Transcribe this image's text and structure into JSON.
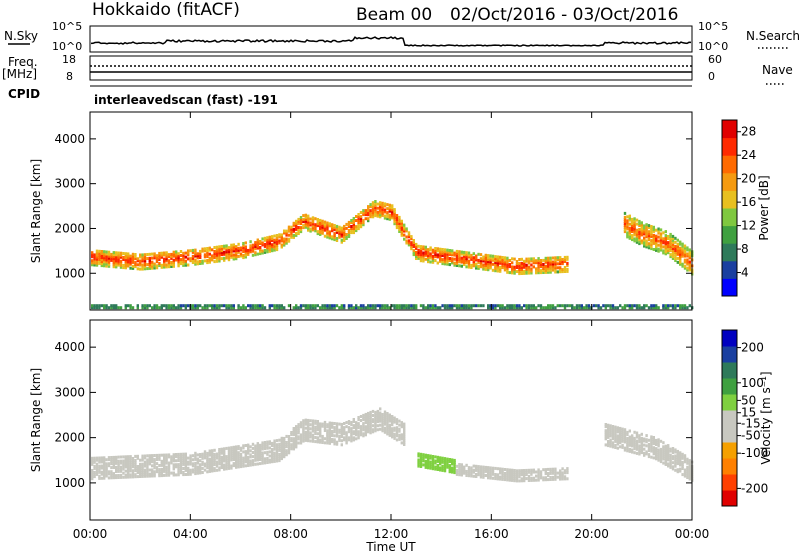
{
  "header": {
    "station": "Hokkaido (fitACF)",
    "beam": "Beam 00",
    "date_range": "02/Oct/2016 - 03/Oct/2016"
  },
  "top_panels": {
    "nsky_label": "N.Sky",
    "nsearch_label": "N.Search",
    "nsky_ticks_left": [
      "10^5",
      "10^0"
    ],
    "nsky_ticks_right": [
      "10^5",
      "10^0"
    ],
    "freq_label": "Freq.",
    "freq_unit": "[MHz]",
    "freq_ticks": [
      "18",
      "8"
    ],
    "nave_label": "Nave",
    "nave_ticks": [
      "60",
      "0"
    ],
    "cpid_label": "CPID",
    "cpid_text": "interleavedscan (fast) -191"
  },
  "colors": {
    "power_scale": [
      "#0000ff",
      "#1a3fa0",
      "#2e7a5a",
      "#3fa040",
      "#7fc840",
      "#e8c020",
      "#f59a10",
      "#ff6a00",
      "#ff2a00",
      "#e00000"
    ],
    "velocity_scale": [
      "#e00000",
      "#ff4000",
      "#ff8000",
      "#f5a000",
      "#c8c8c0",
      "#c8c8c0",
      "#7fd040",
      "#3fa040",
      "#2e7a5a",
      "#1a3fa0",
      "#0000c0"
    ]
  },
  "chart_data": [
    {
      "type": "heatmap",
      "panel": "power",
      "ylabel": "Slant Range [km]",
      "xlabel": "Time UT",
      "x_ticks": [
        "00:00",
        "04:00",
        "08:00",
        "12:00",
        "16:00",
        "20:00",
        "00:00"
      ],
      "y_ticks": [
        1000,
        2000,
        3000,
        4000
      ],
      "ylim": [
        180,
        4600
      ],
      "xlim_hours": [
        0,
        24
      ],
      "colorbar": {
        "label": "Power [dB]",
        "ticks": [
          4,
          8,
          12,
          16,
          20,
          24,
          28
        ],
        "range": [
          0,
          30
        ]
      },
      "features": [
        {
          "name": "main echo band",
          "points": [
            [
              0,
              1400
            ],
            [
              2,
              1300
            ],
            [
              4,
              1400
            ],
            [
              6,
              1550
            ],
            [
              7.5,
              1750
            ],
            [
              8.5,
              2200
            ],
            [
              10,
              1900
            ],
            [
              11.3,
              2500
            ],
            [
              12,
              2400
            ],
            [
              13,
              1500
            ],
            [
              15,
              1350
            ],
            [
              17,
              1200
            ],
            [
              19,
              1250
            ]
          ],
          "width_km": 350,
          "peak_db": 26
        },
        {
          "name": "late echo band",
          "points": [
            [
              21.2,
              2150
            ],
            [
              22,
              1900
            ],
            [
              23,
              1700
            ],
            [
              24,
              1250
            ]
          ],
          "width_km": 500,
          "peak_db": 24
        },
        {
          "name": "near-range clutter",
          "points": [
            [
              0,
              280
            ],
            [
              24,
              280
            ]
          ],
          "width_km": 120,
          "peak_db": 10
        }
      ]
    },
    {
      "type": "heatmap",
      "panel": "velocity",
      "ylabel": "Slant Range [km]",
      "xlabel": "Time UT",
      "x_ticks": [
        "00:00",
        "04:00",
        "08:00",
        "12:00",
        "16:00",
        "20:00",
        "00:00"
      ],
      "y_ticks": [
        1000,
        2000,
        3000,
        4000
      ],
      "ylim": [
        180,
        4600
      ],
      "xlim_hours": [
        0,
        24
      ],
      "colorbar": {
        "label": "Velocity [m s⁻¹]",
        "ticks": [
          200,
          100,
          50,
          15,
          -15,
          -50,
          -100,
          -200
        ],
        "range": [
          -250,
          250
        ]
      },
      "features": [
        {
          "name": "ground scatter band",
          "points": [
            [
              0,
              1350
            ],
            [
              4,
              1450
            ],
            [
              7.5,
              1750
            ],
            [
              8.5,
              2200
            ],
            [
              10,
              2100
            ],
            [
              11.5,
              2450
            ],
            [
              12.5,
              2100
            ]
          ],
          "width_km": 450,
          "velocity": 0
        },
        {
          "name": "positive velocity segment",
          "points": [
            [
              13,
              1550
            ],
            [
              14.5,
              1400
            ]
          ],
          "width_km": 280,
          "velocity": 40
        },
        {
          "name": "negative velocity segment",
          "points": [
            [
              14.5,
              1350
            ],
            [
              17,
              1200
            ],
            [
              19,
              1250
            ]
          ],
          "width_km": 250,
          "velocity": -40
        },
        {
          "name": "late ground scatter",
          "points": [
            [
              20.5,
              2100
            ],
            [
              22.5,
              1800
            ],
            [
              24,
              1300
            ]
          ],
          "width_km": 450,
          "velocity": 0
        }
      ]
    }
  ]
}
